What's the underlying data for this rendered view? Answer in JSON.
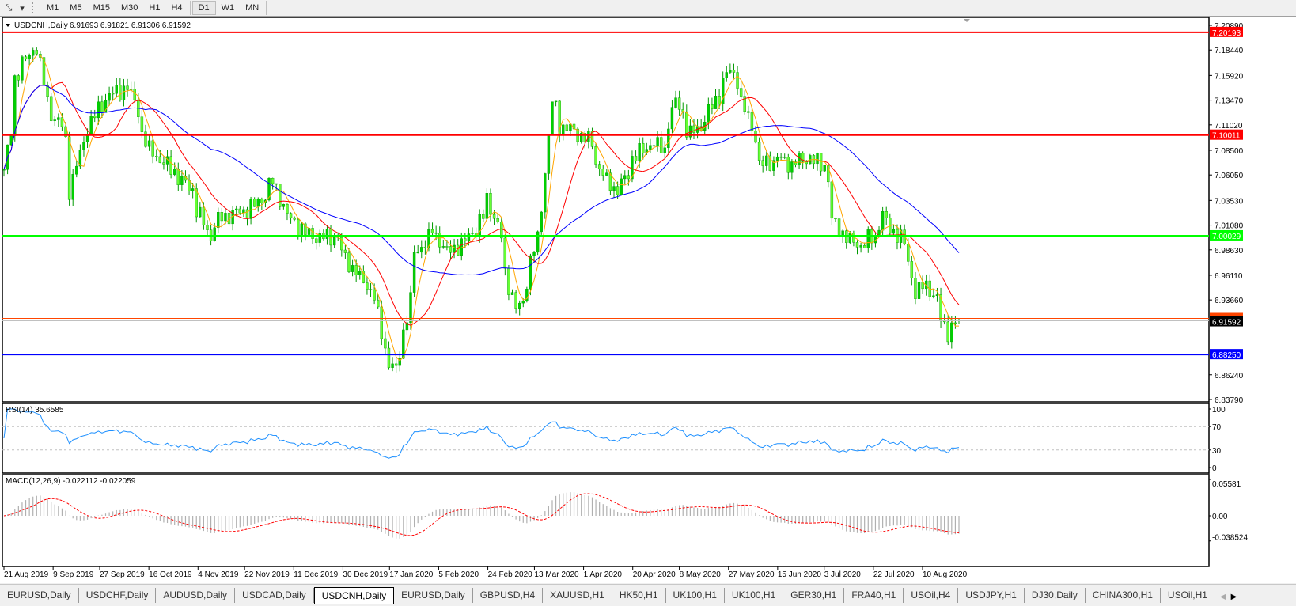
{
  "toolbar": {
    "tool_icon": "line-tools-icon",
    "timeframes": [
      "M1",
      "M5",
      "M15",
      "M30",
      "H1",
      "H4",
      "D1",
      "W1",
      "MN"
    ],
    "active_timeframe": "D1"
  },
  "chart_data": {
    "type": "candlestick",
    "symbol_label": "USDCNH,Daily",
    "ohlc_label": "6.91693 6.91821 6.91306 6.91592",
    "last_ohlc": {
      "open": 6.91693,
      "high": 6.91821,
      "low": 6.91306,
      "close": 6.91592
    },
    "ylim": [
      6.8379,
      7.2089
    ],
    "y_ticks": [
      "7.20890",
      "7.18440",
      "7.15920",
      "7.13470",
      "7.11020",
      "7.08500",
      "7.06050",
      "7.03530",
      "7.01080",
      "6.98630",
      "6.96110",
      "6.93660",
      "6.86240",
      "6.83790"
    ],
    "x_ticks": [
      {
        "label": "21 Aug 2019",
        "date": "2019-08-21"
      },
      {
        "label": "9 Sep 2019",
        "date": "2019-09-09"
      },
      {
        "label": "27 Sep 2019",
        "date": "2019-09-27"
      },
      {
        "label": "16 Oct 2019",
        "date": "2019-10-16"
      },
      {
        "label": "4 Nov 2019",
        "date": "2019-11-04"
      },
      {
        "label": "22 Nov 2019",
        "date": "2019-11-22"
      },
      {
        "label": "11 Dec 2019",
        "date": "2019-12-11"
      },
      {
        "label": "30 Dec 2019",
        "date": "2019-12-30"
      },
      {
        "label": "17 Jan 2020",
        "date": "2020-01-17"
      },
      {
        "label": "5 Feb 2020",
        "date": "2020-02-05"
      },
      {
        "label": "24 Feb 2020",
        "date": "2020-02-24"
      },
      {
        "label": "13 Mar 2020",
        "date": "2020-03-13"
      },
      {
        "label": "1 Apr 2020",
        "date": "2020-04-01"
      },
      {
        "label": "20 Apr 2020",
        "date": "2020-04-20"
      },
      {
        "label": "8 May 2020",
        "date": "2020-05-08"
      },
      {
        "label": "27 May 2020",
        "date": "2020-05-27"
      },
      {
        "label": "15 Jun 2020",
        "date": "2020-06-15"
      },
      {
        "label": "3 Jul 2020",
        "date": "2020-07-03"
      },
      {
        "label": "22 Jul 2020",
        "date": "2020-07-22"
      },
      {
        "label": "10 Aug 2020",
        "date": "2020-08-10"
      }
    ],
    "close_series": [
      [
        "2019-08-21",
        7.066
      ],
      [
        "2019-08-26",
        7.156
      ],
      [
        "2019-08-28",
        7.172
      ],
      [
        "2019-09-03",
        7.188
      ],
      [
        "2019-09-06",
        7.133
      ],
      [
        "2019-09-12",
        7.109
      ],
      [
        "2019-09-16",
        7.046
      ],
      [
        "2019-09-20",
        7.093
      ],
      [
        "2019-09-26",
        7.125
      ],
      [
        "2019-10-01",
        7.14
      ],
      [
        "2019-10-08",
        7.148
      ],
      [
        "2019-10-11",
        7.125
      ],
      [
        "2019-10-16",
        7.085
      ],
      [
        "2019-10-23",
        7.07
      ],
      [
        "2019-11-01",
        7.046
      ],
      [
        "2019-11-08",
        6.999
      ],
      [
        "2019-11-13",
        7.019
      ],
      [
        "2019-11-19",
        7.023
      ],
      [
        "2019-11-26",
        7.03
      ],
      [
        "2019-12-03",
        7.054
      ],
      [
        "2019-12-06",
        7.03
      ],
      [
        "2019-12-13",
        7.007
      ],
      [
        "2019-12-19",
        6.999
      ],
      [
        "2019-12-27",
        6.999
      ],
      [
        "2020-01-02",
        6.968
      ],
      [
        "2020-01-08",
        6.952
      ],
      [
        "2020-01-13",
        6.92
      ],
      [
        "2020-01-16",
        6.873
      ],
      [
        "2020-01-20",
        6.865
      ],
      [
        "2020-01-22",
        6.905
      ],
      [
        "2020-01-27",
        6.983
      ],
      [
        "2020-02-03",
        7.007
      ],
      [
        "2020-02-07",
        6.983
      ],
      [
        "2020-02-13",
        6.991
      ],
      [
        "2020-02-19",
        7.007
      ],
      [
        "2020-02-24",
        7.038
      ],
      [
        "2020-02-28",
        6.999
      ],
      [
        "2020-03-05",
        6.928
      ],
      [
        "2020-03-09",
        6.936
      ],
      [
        "2020-03-11",
        6.975
      ],
      [
        "2020-03-16",
        7.03
      ],
      [
        "2020-03-19",
        7.133
      ],
      [
        "2020-03-23",
        7.109
      ],
      [
        "2020-03-30",
        7.101
      ],
      [
        "2020-04-03",
        7.093
      ],
      [
        "2020-04-09",
        7.054
      ],
      [
        "2020-04-14",
        7.046
      ],
      [
        "2020-04-20",
        7.078
      ],
      [
        "2020-04-27",
        7.093
      ],
      [
        "2020-05-01",
        7.085
      ],
      [
        "2020-05-06",
        7.133
      ],
      [
        "2020-05-12",
        7.101
      ],
      [
        "2020-05-18",
        7.117
      ],
      [
        "2020-05-22",
        7.14
      ],
      [
        "2020-05-27",
        7.164
      ],
      [
        "2020-05-29",
        7.156
      ],
      [
        "2020-06-03",
        7.117
      ],
      [
        "2020-06-08",
        7.07
      ],
      [
        "2020-06-15",
        7.078
      ],
      [
        "2020-06-19",
        7.07
      ],
      [
        "2020-06-26",
        7.078
      ],
      [
        "2020-07-02",
        7.07
      ],
      [
        "2020-07-06",
        7.015
      ],
      [
        "2020-07-10",
        6.999
      ],
      [
        "2020-07-16",
        6.991
      ],
      [
        "2020-07-22",
        6.999
      ],
      [
        "2020-07-24",
        7.023
      ],
      [
        "2020-07-28",
        7.007
      ],
      [
        "2020-08-03",
        6.991
      ],
      [
        "2020-08-06",
        6.944
      ],
      [
        "2020-08-11",
        6.952
      ],
      [
        "2020-08-14",
        6.936
      ],
      [
        "2020-08-19",
        6.905
      ],
      [
        "2020-08-21",
        6.913
      ],
      [
        "2020-08-24",
        6.91592
      ]
    ],
    "moving_averages": [
      {
        "color": "#ffa500"
      },
      {
        "color": "#ff0000"
      },
      {
        "color": "#0000ff"
      }
    ],
    "horizontal_lines": [
      {
        "price": 7.20193,
        "label": "7.20193",
        "color": "#ff0000"
      },
      {
        "price": 7.10011,
        "label": "7.10011",
        "color": "#ff0000"
      },
      {
        "price": 7.00029,
        "label": "7.00029",
        "color": "#00ff00"
      },
      {
        "price": 6.8825,
        "label": "6.88250",
        "color": "#0000ff"
      }
    ],
    "bid_line": {
      "price": 6.91592,
      "label": "6.91592"
    },
    "candle_colors": {
      "up": "#00d000",
      "down": "#66ff33",
      "wick": "#009900"
    },
    "rsi": {
      "label": "RSI(14) 35.6585",
      "levels": [
        70,
        30
      ],
      "y_ticks": [
        "100",
        "70",
        "30",
        "0"
      ],
      "color": "#1e90ff"
    },
    "macd": {
      "label": "MACD(12,26,9) -0.022112 -0.022059",
      "y_ticks": [
        "0.05581",
        "0.00",
        "-0.038524"
      ],
      "ylim": [
        -0.038524,
        0.05581
      ],
      "hist_color": "#b0b0b0",
      "signal_color": "#ff0000"
    }
  },
  "tabs": [
    "EURUSD,Daily",
    "USDCHF,Daily",
    "AUDUSD,Daily",
    "USDCAD,Daily",
    "USDCNH,Daily",
    "EURUSD,Daily",
    "GBPUSD,H4",
    "XAUUSD,H1",
    "HK50,H1",
    "UK100,H1",
    "UK100,H1",
    "GER30,H1",
    "FRA40,H1",
    "USOil,H4",
    "USDJPY,H1",
    "DJ30,Daily",
    "CHINA300,H1",
    "USOil,H1"
  ],
  "active_tab": "USDCNH,Daily"
}
